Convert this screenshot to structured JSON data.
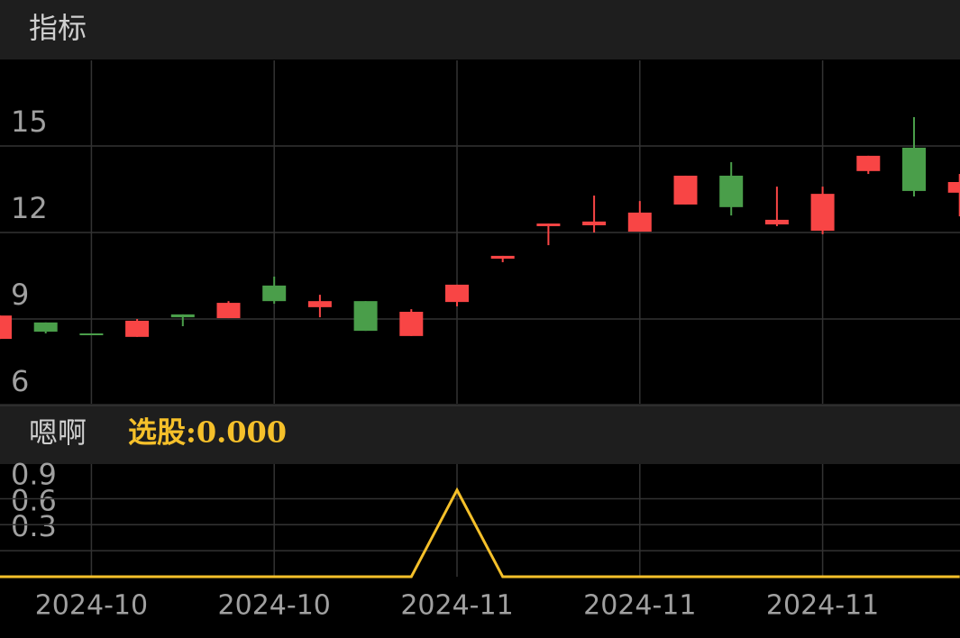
{
  "chart_data": [
    {
      "type": "candlestick",
      "title": "指标",
      "open": [
        8.31,
        8.88,
        8.5,
        8.38,
        9.16,
        9.03,
        10.16,
        9.41,
        9.62,
        8.41,
        9.59,
        11.09,
        12.22,
        12.25,
        12.03,
        12.97,
        13.97,
        12.28,
        12.06,
        14.13,
        14.94,
        13.38
      ],
      "high": [
        9.12,
        8.88,
        8.5,
        9.0,
        9.16,
        9.62,
        10.47,
        9.84,
        9.62,
        9.34,
        10.19,
        11.19,
        12.31,
        13.28,
        13.09,
        13.97,
        14.44,
        13.59,
        13.59,
        14.66,
        16.0,
        14.03
      ],
      "low": [
        8.31,
        8.5,
        8.44,
        8.38,
        8.75,
        9.03,
        9.53,
        9.06,
        8.59,
        8.41,
        9.44,
        10.97,
        11.56,
        12.0,
        12.03,
        12.97,
        12.59,
        12.22,
        11.94,
        14.03,
        13.25,
        12.56
      ],
      "close": [
        9.12,
        8.56,
        8.44,
        8.94,
        9.06,
        9.56,
        9.62,
        9.62,
        8.59,
        9.25,
        10.19,
        11.19,
        12.31,
        12.38,
        12.69,
        13.97,
        12.88,
        12.44,
        13.34,
        14.66,
        13.44,
        13.75
      ],
      "up_color": "#f84545",
      "down_color": "#4a9e4a",
      "ylim": [
        6,
        18
      ],
      "yticks": [
        6,
        9,
        12,
        15
      ],
      "grid": true
    },
    {
      "type": "line",
      "title": "嗯啊",
      "legend": "选股:0.000",
      "categories": [
        null,
        null,
        "2024-10",
        null,
        null,
        null,
        "2024-10",
        null,
        null,
        null,
        "2024-11",
        null,
        null,
        null,
        "2024-11",
        null,
        null,
        null,
        "2024-11",
        null,
        null,
        null
      ],
      "values": [
        0,
        0,
        0,
        0,
        0,
        0,
        0,
        0,
        0,
        0,
        1,
        0,
        0,
        0,
        0,
        0,
        0,
        0,
        0,
        0,
        0,
        0
      ],
      "color": "#f5c02a",
      "ylim": [
        0,
        1.3
      ],
      "yticks": [
        0.3,
        0.6,
        0.9
      ],
      "grid": true
    }
  ]
}
